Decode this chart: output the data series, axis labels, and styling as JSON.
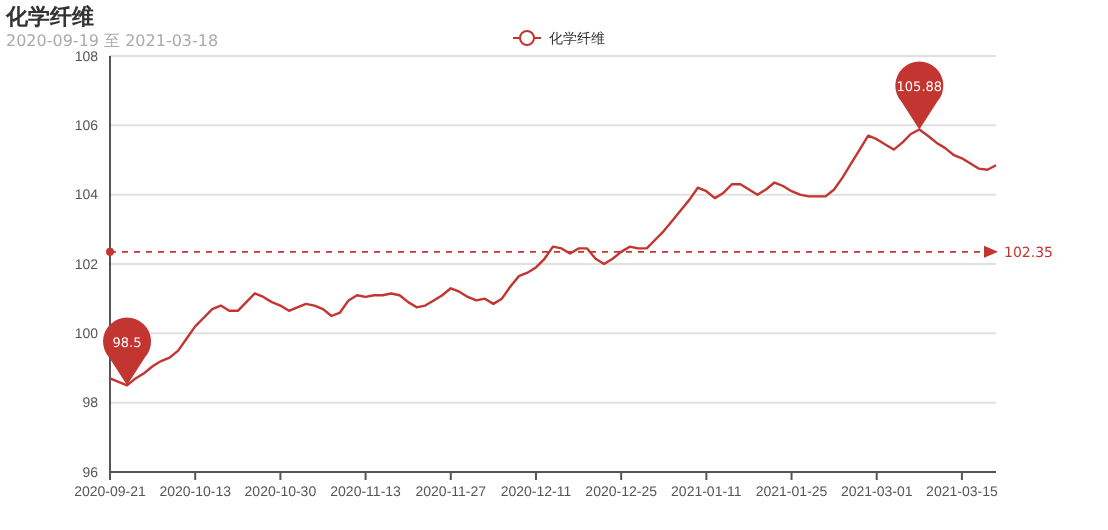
{
  "chart_data": {
    "type": "line",
    "title": "化学纤维",
    "subtitle": "2020-09-19 至 2021-03-18",
    "categories": [
      "2020-09-21",
      null,
      null,
      null,
      null,
      null,
      null,
      null,
      null,
      null,
      "2020-10-13",
      null,
      null,
      null,
      null,
      null,
      null,
      null,
      null,
      null,
      "2020-10-30",
      null,
      null,
      null,
      null,
      null,
      null,
      null,
      null,
      null,
      "2020-11-13",
      null,
      null,
      null,
      null,
      null,
      null,
      null,
      null,
      null,
      "2020-11-27",
      null,
      null,
      null,
      null,
      null,
      null,
      null,
      null,
      null,
      "2020-12-11",
      null,
      null,
      null,
      null,
      null,
      null,
      null,
      null,
      null,
      "2020-12-25",
      null,
      null,
      null,
      null,
      null,
      null,
      null,
      null,
      null,
      "2021-01-11",
      null,
      null,
      null,
      null,
      null,
      null,
      null,
      null,
      null,
      "2021-01-25",
      null,
      null,
      null,
      null,
      null,
      null,
      null,
      null,
      null,
      "2021-03-01",
      null,
      null,
      null,
      null,
      null,
      null,
      null,
      null,
      null,
      "2021-03-15",
      null,
      null,
      null,
      null
    ],
    "series": [
      {
        "name": "化学纤维",
        "color": "#c23531",
        "values": [
          98.7,
          98.6,
          98.5,
          98.7,
          98.85,
          99.05,
          99.2,
          99.3,
          99.5,
          99.85,
          100.2,
          100.45,
          100.7,
          100.8,
          100.65,
          100.65,
          100.9,
          101.15,
          101.05,
          100.9,
          100.8,
          100.65,
          100.75,
          100.85,
          100.8,
          100.7,
          100.5,
          100.6,
          100.95,
          101.1,
          101.05,
          101.1,
          101.1,
          101.15,
          101.1,
          100.9,
          100.75,
          100.8,
          100.95,
          101.1,
          101.3,
          101.2,
          101.05,
          100.95,
          101.0,
          100.85,
          101.0,
          101.35,
          101.65,
          101.75,
          101.9,
          102.15,
          102.5,
          102.45,
          102.3,
          102.45,
          102.45,
          102.15,
          102.0,
          102.15,
          102.35,
          102.5,
          102.45,
          102.45,
          102.7,
          102.95,
          103.25,
          103.55,
          103.85,
          104.2,
          104.1,
          103.9,
          104.05,
          104.3,
          104.3,
          104.15,
          104.0,
          104.15,
          104.35,
          104.25,
          104.1,
          104.0,
          103.95,
          103.95,
          103.95,
          104.15,
          104.5,
          104.9,
          105.3,
          105.7,
          105.6,
          105.45,
          105.3,
          105.5,
          105.75,
          105.88,
          105.7,
          105.5,
          105.35,
          105.15,
          105.05,
          104.9,
          104.75,
          104.72,
          104.85
        ]
      }
    ],
    "ylim": [
      96,
      108
    ],
    "yticks": [
      96,
      98,
      100,
      102,
      104,
      106,
      108
    ],
    "grid": "y",
    "legend": "top",
    "ref_lines": [
      {
        "axis": "y",
        "value": 102.35,
        "label": "102.35",
        "color": "#c23531",
        "line_style": "dashed"
      }
    ],
    "annotations": [
      {
        "text": "98.5",
        "y": 98.5
      },
      {
        "text": "105.88",
        "y": 105.88
      }
    ]
  }
}
